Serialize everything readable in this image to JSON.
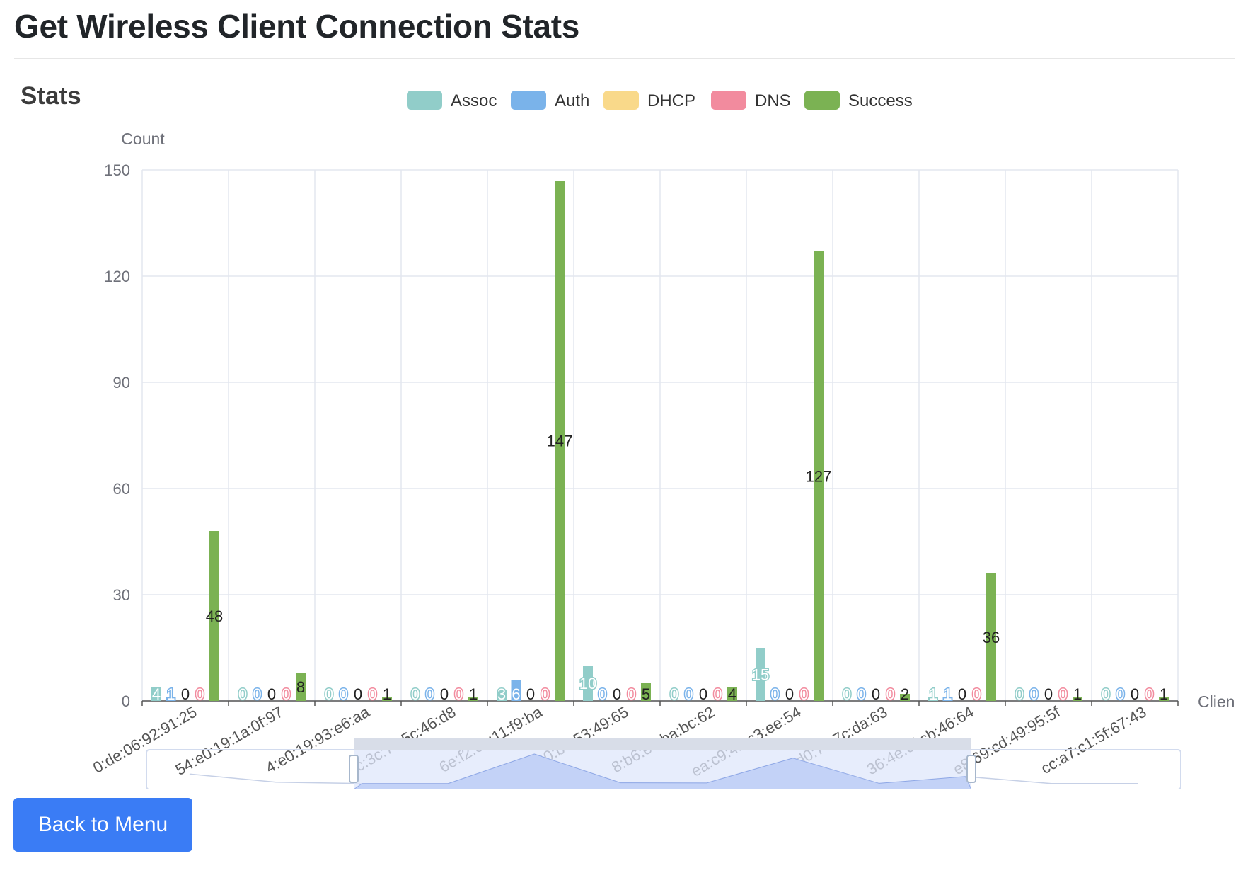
{
  "page_title": "Get Wireless Client Connection Stats",
  "back_button_label": "Back to Menu",
  "colors": {
    "assoc": "#91cdc9",
    "auth": "#7ab3ea",
    "dhcp": "#f9d98a",
    "dns": "#f28b9e",
    "success": "#7bb253",
    "grid": "#e3e7ef",
    "axis_text": "#6e7079",
    "button": "#3a7cf5"
  },
  "chart_data": {
    "type": "bar",
    "title": "Stats",
    "xlabel": "Clien",
    "ylabel": "Count",
    "ylim": [
      0,
      150
    ],
    "yticks": [
      0,
      30,
      60,
      90,
      120,
      150
    ],
    "grid": true,
    "legend_position": "top-center",
    "categories": [
      "0:de:06:92:91:25",
      "54:e0:19:1a:0f:97",
      "4:e0:19:93:e6:aa",
      "cc:3c:7c:5c:46:d8",
      "6e:f2:0b:11:f9:ba",
      "0:60:b7:53:49:65",
      "8:b6:e9:ba:bc:62",
      "ea:c9:42:c3:ee:54",
      "c:d0:74:7c:da:63",
      "36:4e:ef:cb:46:64",
      "e8:69:cd:49:95:5f",
      "cc:a7:c1:5f:67:43"
    ],
    "series": [
      {
        "name": "Assoc",
        "values": [
          4,
          0,
          0,
          0,
          3,
          10,
          0,
          15,
          0,
          1,
          0,
          0
        ]
      },
      {
        "name": "Auth",
        "values": [
          1,
          0,
          0,
          0,
          6,
          0,
          0,
          0,
          0,
          1,
          0,
          0
        ]
      },
      {
        "name": "DHCP",
        "values": [
          0,
          0,
          0,
          0,
          0,
          0,
          0,
          0,
          0,
          0,
          0,
          0
        ]
      },
      {
        "name": "DNS",
        "values": [
          0,
          0,
          0,
          0,
          0,
          0,
          0,
          0,
          0,
          0,
          0,
          0
        ]
      },
      {
        "name": "Success",
        "values": [
          48,
          8,
          1,
          1,
          147,
          5,
          4,
          127,
          2,
          36,
          1,
          1
        ]
      }
    ]
  }
}
